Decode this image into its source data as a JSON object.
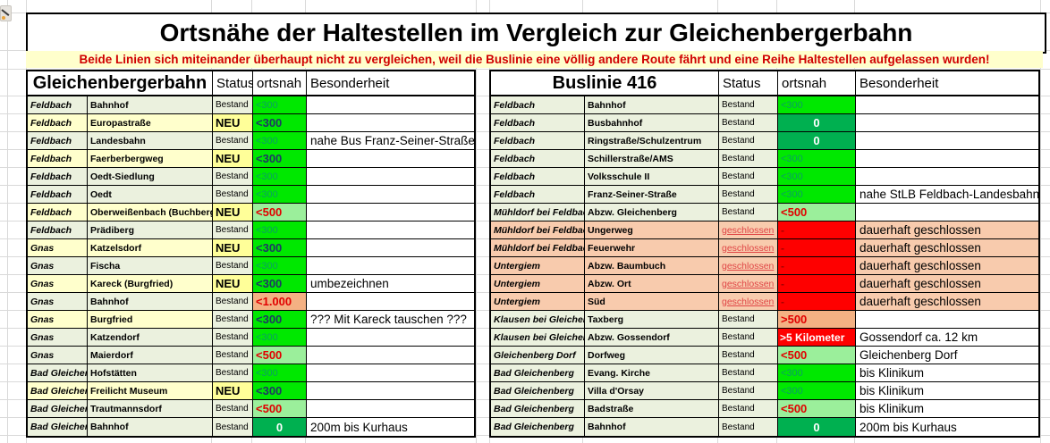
{
  "page": {
    "title": "Ortsnähe der Haltestellen im Vergleich zur Gleichenbergerbahn",
    "warning": "Beide Linien sich miteinander überhaupt nicht zu vergleichen, weil die Buslinie eine völlig andere Route fährt und eine Reihe Haltestellen aufgelassen wurden!"
  },
  "headers": {
    "status": "Status",
    "ortsnah": "ortsnah",
    "besonderheit": "Besonderheit"
  },
  "icons": {
    "corner": "pin-icon"
  },
  "colors": {
    "row_green": "#EBF1DE",
    "row_yellow": "#FFFFCC",
    "row_salmon": "#F8CBAD",
    "neu_yellow": "#FFFF99",
    "near_green": "#00E800",
    "near_green_light": "#9BEF9B",
    "zero_green": "#00B050",
    "far_orange": "#F4B183",
    "closed_red": "#FE0000",
    "value_red": "#E10000",
    "value_navy": "#1F3864",
    "value_teal": "#0A9E63",
    "warning_red": "#D00000",
    "gridline": "#D9D9D9"
  },
  "tables": [
    {
      "title": "Gleichenbergerbahn",
      "rows": [
        {
          "gemeinde": "Feldbach",
          "station": "Bahnhof",
          "status": "Bestand",
          "status_style": "bestand",
          "bg": "green",
          "status_bg": "green",
          "ortsnah": "<300",
          "ortsnah_style": "g300",
          "besonderheit": ""
        },
        {
          "gemeinde": "Feldbach",
          "station": "Europastraße",
          "status": "NEU",
          "status_style": "neu",
          "bg": "yellow",
          "status_bg": "neu",
          "ortsnah": "<300",
          "ortsnah_style": "g300b",
          "besonderheit": ""
        },
        {
          "gemeinde": "Feldbach",
          "station": "Landesbahn",
          "status": "Bestand",
          "status_style": "bestand",
          "bg": "green",
          "status_bg": "green",
          "ortsnah": "<300",
          "ortsnah_style": "g300",
          "besonderheit": "nahe Bus Franz-Seiner-Straße"
        },
        {
          "gemeinde": "Feldbach",
          "station": "Faerberbergweg",
          "status": "NEU",
          "status_style": "neu",
          "bg": "yellow",
          "status_bg": "neu",
          "ortsnah": "<300",
          "ortsnah_style": "g300b",
          "besonderheit": ""
        },
        {
          "gemeinde": "Feldbach",
          "station": "Oedt-Siedlung",
          "status": "Bestand",
          "status_style": "bestand",
          "bg": "green",
          "status_bg": "green",
          "ortsnah": "<300",
          "ortsnah_style": "g300",
          "besonderheit": ""
        },
        {
          "gemeinde": "Feldbach",
          "station": "Oedt",
          "status": "Bestand",
          "status_style": "bestand",
          "bg": "green",
          "status_bg": "green",
          "ortsnah": "<300",
          "ortsnah_style": "g300",
          "besonderheit": ""
        },
        {
          "gemeinde": "Feldbach",
          "station": "Oberweißenbach (Buchberg)",
          "status": "NEU",
          "status_style": "neu",
          "bg": "yellow",
          "status_bg": "neu",
          "ortsnah": "<500",
          "ortsnah_style": "g500",
          "besonderheit": ""
        },
        {
          "gemeinde": "Feldbach",
          "station": "Prädiberg",
          "status": "Bestand",
          "status_style": "bestand",
          "bg": "green",
          "status_bg": "green",
          "ortsnah": "<300",
          "ortsnah_style": "g300",
          "besonderheit": ""
        },
        {
          "gemeinde": "Gnas",
          "station": "Katzelsdorf",
          "status": "NEU",
          "status_style": "neu",
          "bg": "yellow",
          "status_bg": "neu",
          "ortsnah": "<300",
          "ortsnah_style": "g300b",
          "besonderheit": ""
        },
        {
          "gemeinde": "Gnas",
          "station": "Fischa",
          "status": "Bestand",
          "status_style": "bestand",
          "bg": "green",
          "status_bg": "green",
          "ortsnah": "<300",
          "ortsnah_style": "g300",
          "besonderheit": ""
        },
        {
          "gemeinde": "Gnas",
          "station": "Kareck (Burgfried)",
          "status": "NEU",
          "status_style": "neu",
          "bg": "yellow",
          "status_bg": "neu",
          "ortsnah": "<300",
          "ortsnah_style": "g300b",
          "besonderheit": "umbezeichnen"
        },
        {
          "gemeinde": "Gnas",
          "station": "Bahnhof",
          "status": "Bestand",
          "status_style": "bestand",
          "bg": "green",
          "status_bg": "green",
          "ortsnah": "<1.000",
          "ortsnah_style": "osalmon",
          "besonderheit": ""
        },
        {
          "gemeinde": "Gnas",
          "station": "Burgfried",
          "status": "Bestand",
          "status_style": "bestand",
          "bg": "yellow",
          "status_bg": "green",
          "ortsnah": "<300",
          "ortsnah_style": "g300b",
          "besonderheit": "??? Mit Kareck tauschen ???"
        },
        {
          "gemeinde": "Gnas",
          "station": "Katzendorf",
          "status": "Bestand",
          "status_style": "bestand",
          "bg": "green",
          "status_bg": "green",
          "ortsnah": "<300",
          "ortsnah_style": "g300",
          "besonderheit": ""
        },
        {
          "gemeinde": "Gnas",
          "station": "Maierdorf",
          "status": "Bestand",
          "status_style": "bestand",
          "bg": "green",
          "status_bg": "green",
          "ortsnah": "<500",
          "ortsnah_style": "g500",
          "besonderheit": ""
        },
        {
          "gemeinde": "Bad Gleichenberg",
          "station": "Hofstätten",
          "status": "Bestand",
          "status_style": "bestand",
          "bg": "green",
          "status_bg": "green",
          "ortsnah": "<300",
          "ortsnah_style": "g300",
          "besonderheit": ""
        },
        {
          "gemeinde": "Bad Gleichenberg",
          "station": "Freilicht Museum",
          "status": "NEU",
          "status_style": "neu",
          "bg": "yellow",
          "status_bg": "neu",
          "ortsnah": "<300",
          "ortsnah_style": "g300b",
          "besonderheit": ""
        },
        {
          "gemeinde": "Bad Gleichenberg",
          "station": "Trautmannsdorf",
          "status": "Bestand",
          "status_style": "bestand",
          "bg": "green",
          "status_bg": "green",
          "ortsnah": "<500",
          "ortsnah_style": "g500",
          "besonderheit": ""
        },
        {
          "gemeinde": "Bad Gleichenberg",
          "station": "Bahnhof",
          "status": "Bestand",
          "status_style": "bestand",
          "bg": "green",
          "status_bg": "green",
          "ortsnah": "0",
          "ortsnah_style": "zero",
          "besonderheit": "200m bis Kurhaus"
        }
      ]
    },
    {
      "title": "Buslinie 416",
      "rows": [
        {
          "gemeinde": "Feldbach",
          "station": "Bahnhof",
          "status": "Bestand",
          "status_style": "bestand",
          "bg": "green",
          "status_bg": "green",
          "ortsnah": "<300",
          "ortsnah_style": "g300",
          "besonderheit": ""
        },
        {
          "gemeinde": "Feldbach",
          "station": "Busbahnhof",
          "status": "Bestand",
          "status_style": "bestand",
          "bg": "green",
          "status_bg": "green",
          "ortsnah": "0",
          "ortsnah_style": "zero",
          "besonderheit": ""
        },
        {
          "gemeinde": "Feldbach",
          "station": "Ringstraße/Schulzentrum",
          "status": "Bestand",
          "status_style": "bestand",
          "bg": "green",
          "status_bg": "green",
          "ortsnah": "0",
          "ortsnah_style": "zero",
          "besonderheit": ""
        },
        {
          "gemeinde": "Feldbach",
          "station": "Schillerstraße/AMS",
          "status": "Bestand",
          "status_style": "bestand",
          "bg": "green",
          "status_bg": "green",
          "ortsnah": "<300",
          "ortsnah_style": "g300",
          "besonderheit": ""
        },
        {
          "gemeinde": "Feldbach",
          "station": "Volksschule II",
          "status": "Bestand",
          "status_style": "bestand",
          "bg": "green",
          "status_bg": "green",
          "ortsnah": "<300",
          "ortsnah_style": "g300",
          "besonderheit": ""
        },
        {
          "gemeinde": "Feldbach",
          "station": "Franz-Seiner-Straße",
          "status": "Bestand",
          "status_style": "bestand",
          "bg": "green",
          "status_bg": "green",
          "ortsnah": "<300",
          "ortsnah_style": "g300",
          "besonderheit": "nahe StLB Feldbach-Landesbahn"
        },
        {
          "gemeinde": "Mühldorf bei Feldbach",
          "station": "Abzw. Gleichenberg",
          "status": "Bestand",
          "status_style": "bestand",
          "bg": "green",
          "status_bg": "green",
          "ortsnah": "<500",
          "ortsnah_style": "g500",
          "besonderheit": ""
        },
        {
          "gemeinde": "Mühldorf bei Feldbach",
          "station": "Ungerweg",
          "status": "geschlossen",
          "status_style": "geschlossen",
          "bg": "salmon",
          "status_bg": "salmon",
          "ortsnah": "-",
          "ortsnah_style": "dash",
          "besonderheit": "dauerhaft geschlossen"
        },
        {
          "gemeinde": "Mühldorf bei Feldbach",
          "station": "Feuerwehr",
          "status": "geschlossen",
          "status_style": "geschlossen",
          "bg": "salmon",
          "status_bg": "salmon",
          "ortsnah": "-",
          "ortsnah_style": "dash",
          "besonderheit": "dauerhaft geschlossen"
        },
        {
          "gemeinde": "Untergiem",
          "station": "Abzw. Baumbuch",
          "status": "geschlossen",
          "status_style": "geschlossen",
          "bg": "salmon",
          "status_bg": "salmon",
          "ortsnah": "-",
          "ortsnah_style": "dash",
          "besonderheit": "dauerhaft geschlossen"
        },
        {
          "gemeinde": "Untergiem",
          "station": "Abzw. Ort",
          "status": "geschlossen",
          "status_style": "geschlossen",
          "bg": "salmon",
          "status_bg": "salmon",
          "ortsnah": "-",
          "ortsnah_style": "dash",
          "besonderheit": "dauerhaft geschlossen"
        },
        {
          "gemeinde": "Untergiem",
          "station": "Süd",
          "status": "geschlossen",
          "status_style": "geschlossen",
          "bg": "salmon",
          "status_bg": "salmon",
          "ortsnah": "-",
          "ortsnah_style": "dash",
          "besonderheit": "dauerhaft geschlossen"
        },
        {
          "gemeinde": "Klausen bei Gleichenberg",
          "station": "Taxberg",
          "status": "Bestand",
          "status_style": "bestand",
          "bg": "green",
          "status_bg": "green",
          "ortsnah": ">500",
          "ortsnah_style": "osalmon",
          "besonderheit": ""
        },
        {
          "gemeinde": "Klausen bei Gleichenberg",
          "station": "Abzw. Gossendorf",
          "status": "Bestand",
          "status_style": "bestand",
          "bg": "green",
          "status_bg": "green",
          "ortsnah": ">5 Kilometer",
          "ortsnah_style": "far",
          "besonderheit": "Gossendorf ca. 12 km"
        },
        {
          "gemeinde": "Gleichenberg Dorf",
          "station": "Dorfweg",
          "status": "Bestand",
          "status_style": "bestand",
          "bg": "green",
          "status_bg": "green",
          "ortsnah": "<500",
          "ortsnah_style": "g500",
          "besonderheit": "Gleichenberg Dorf"
        },
        {
          "gemeinde": "Bad Gleichenberg",
          "station": "Evang. Kirche",
          "status": "Bestand",
          "status_style": "bestand",
          "bg": "green",
          "status_bg": "green",
          "ortsnah": "<300",
          "ortsnah_style": "g300",
          "besonderheit": "bis Klinikum"
        },
        {
          "gemeinde": "Bad Gleichenberg",
          "station": "Villa d'Orsay",
          "status": "Bestand",
          "status_style": "bestand",
          "bg": "green",
          "status_bg": "green",
          "ortsnah": "<300",
          "ortsnah_style": "g300",
          "besonderheit": "bis Klinikum"
        },
        {
          "gemeinde": "Bad Gleichenberg",
          "station": "Badstraße",
          "status": "Bestand",
          "status_style": "bestand",
          "bg": "green",
          "status_bg": "green",
          "ortsnah": "<500",
          "ortsnah_style": "g500",
          "besonderheit": "bis Klinikum"
        },
        {
          "gemeinde": "Bad Gleichenberg",
          "station": "Bahnhof",
          "status": "Bestand",
          "status_style": "bestand",
          "bg": "green",
          "status_bg": "green",
          "ortsnah": "0",
          "ortsnah_style": "zero",
          "besonderheit": "200m bis Kurhaus"
        }
      ]
    }
  ]
}
